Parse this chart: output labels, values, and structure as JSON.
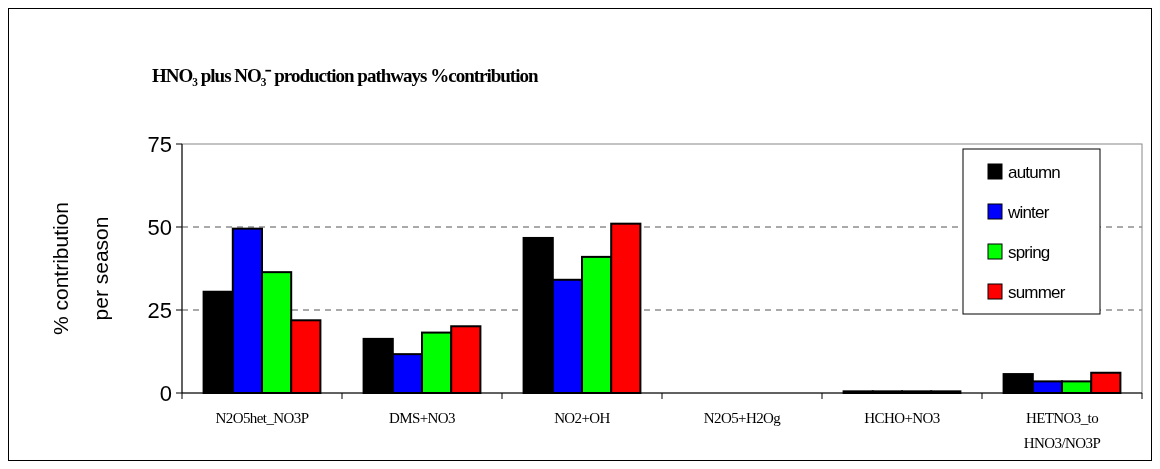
{
  "chart_data": {
    "type": "bar",
    "title": "HNO₃  plus NO₃⁻ production pathways %contribution",
    "ylabel": "% contribution per season",
    "categories": [
      "N2O5het_NO3P",
      "DMS+NO3",
      "NO2+OH",
      "N2O5+H2Og",
      "HCHO+NO3",
      "HETNO3_to HNO3/NO3P"
    ],
    "series": [
      {
        "name": "autumn",
        "color": "#000000",
        "values": [
          30.5,
          16.3,
          46.7,
          0,
          0.5,
          5.7
        ]
      },
      {
        "name": "winter",
        "color": "#0000ff",
        "values": [
          49.5,
          11.7,
          34.1,
          0,
          0.5,
          3.5
        ]
      },
      {
        "name": "spring",
        "color": "#00ff00",
        "values": [
          36.4,
          18.2,
          41,
          0,
          0.5,
          3.5
        ]
      },
      {
        "name": "summer",
        "color": "#ff0000",
        "values": [
          21.9,
          20.1,
          51,
          0,
          0.5,
          6.1
        ]
      }
    ],
    "ylim": [
      0,
      75
    ],
    "yticks": [
      0,
      25,
      50,
      75
    ],
    "grid": "y",
    "legend": "top right"
  }
}
